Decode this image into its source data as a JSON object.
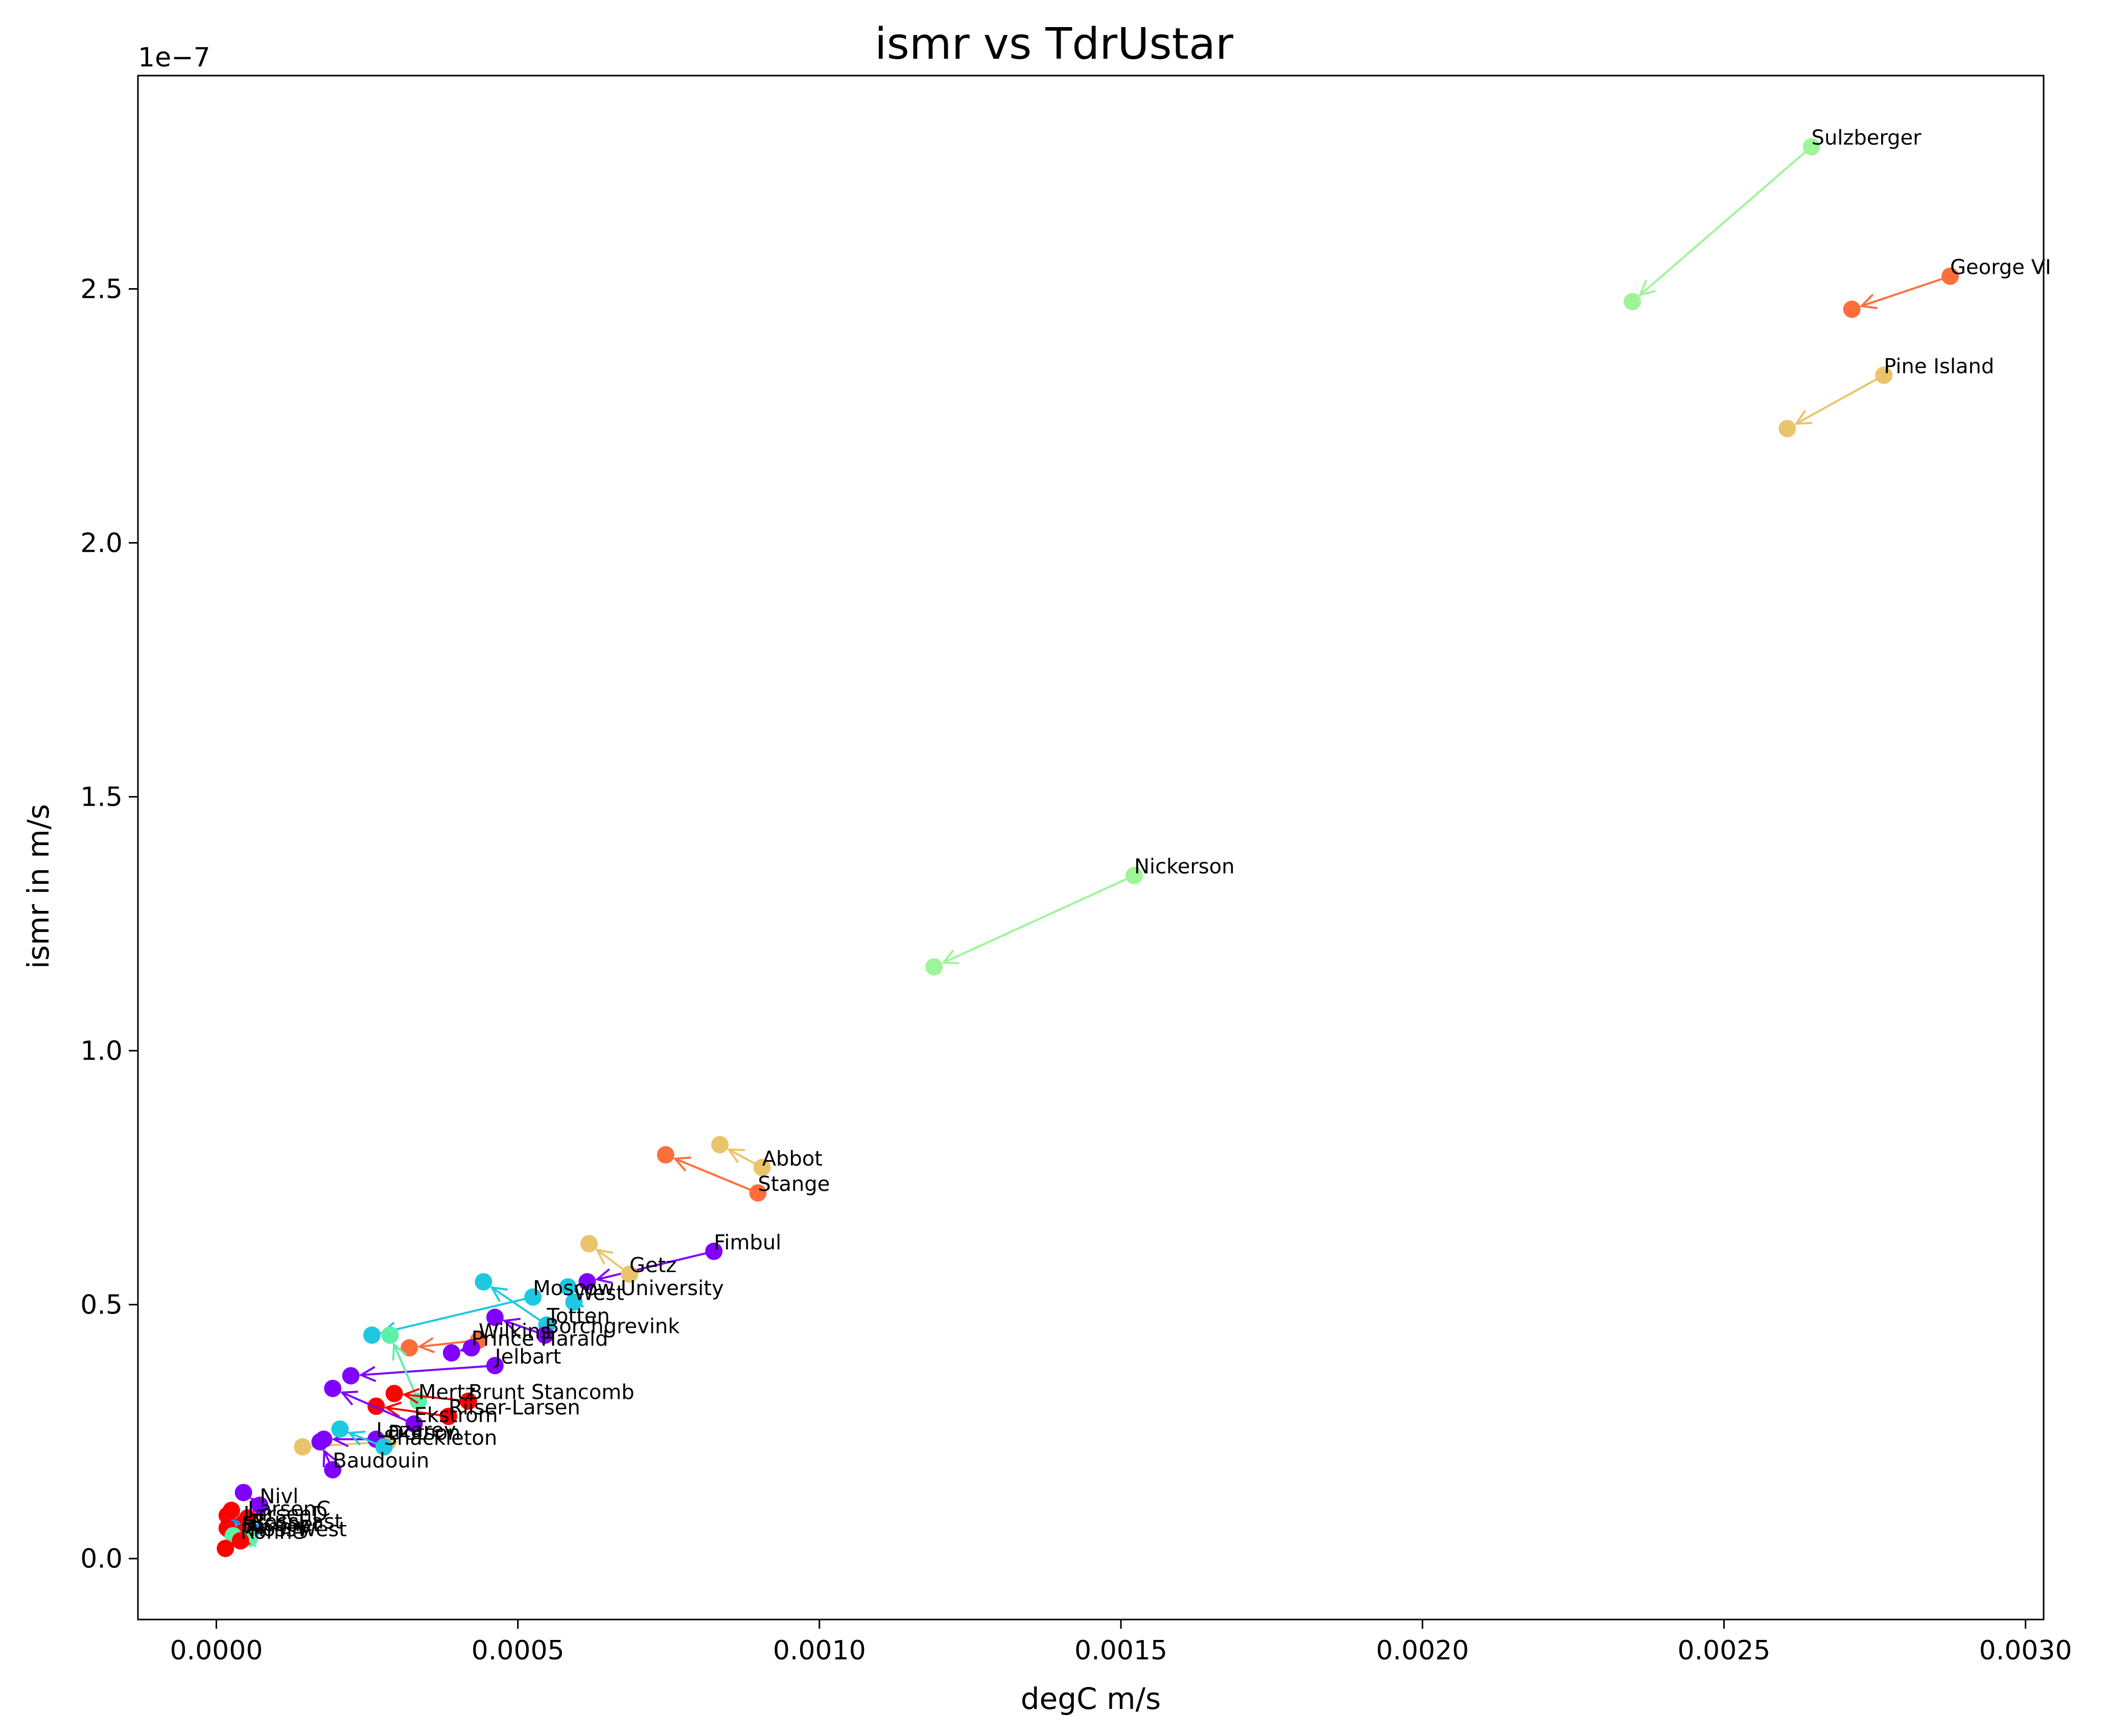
{
  "chart_data": {
    "type": "scatter",
    "title": "ismr vs TdrUstar",
    "xlabel": "degC m/s",
    "ylabel": "ismr in m/s",
    "y_offset_label": "1e−7",
    "xlim": [
      -0.00013,
      0.00303
    ],
    "ylim": [
      -0.12,
      2.92
    ],
    "y_scale_note": "y values in units of 1e-7 m/s",
    "xticks": [
      0.0,
      0.0005,
      0.001,
      0.0015,
      0.002,
      0.0025,
      0.003
    ],
    "xtick_labels": [
      "0.0000",
      "0.0005",
      "0.0010",
      "0.0015",
      "0.0020",
      "0.0025",
      "0.0030"
    ],
    "yticks": [
      0.0,
      0.5,
      1.0,
      1.5,
      2.0,
      2.5
    ],
    "ytick_labels": [
      "0.0",
      "0.5",
      "1.0",
      "1.5",
      "2.0",
      "2.5"
    ],
    "grid": false,
    "legend": "none",
    "annotation": "arrows point from labeled point to its paired point",
    "series": [
      {
        "name": "Sulzberger",
        "color": "#9df597",
        "x": 0.002645,
        "y": 2.78,
        "x2": 0.002348,
        "y2": 2.475
      },
      {
        "name": "George VI",
        "color": "#ff6e3a",
        "x": 0.002875,
        "y": 2.525,
        "x2": 0.002712,
        "y2": 2.46
      },
      {
        "name": "Pine Island",
        "color": "#e9c46a",
        "x": 0.002765,
        "y": 2.33,
        "x2": 0.002605,
        "y2": 2.225
      },
      {
        "name": "Nickerson",
        "color": "#9df597",
        "x": 0.001522,
        "y": 1.345,
        "x2": 0.00119,
        "y2": 1.165
      },
      {
        "name": "Abbot",
        "color": "#e9c46a",
        "x": 0.000905,
        "y": 0.77,
        "x2": 0.000835,
        "y2": 0.815
      },
      {
        "name": "Stange",
        "color": "#ff6e3a",
        "x": 0.000898,
        "y": 0.72,
        "x2": 0.000745,
        "y2": 0.795
      },
      {
        "name": "Fimbul",
        "color": "#7f00ff",
        "x": 0.000825,
        "y": 0.605,
        "x2": 0.000615,
        "y2": 0.545
      },
      {
        "name": "Getz",
        "color": "#e9c46a",
        "x": 0.000685,
        "y": 0.56,
        "x2": 0.000618,
        "y2": 0.62
      },
      {
        "name": "Moscow University",
        "color": "#1ec8e0",
        "x": 0.000525,
        "y": 0.515,
        "x2": 0.000258,
        "y2": 0.44
      },
      {
        "name": "West",
        "color": "#1ec8e0",
        "x": 0.000593,
        "y": 0.505,
        "x2": 0.000583,
        "y2": 0.535
      },
      {
        "name": "Totten",
        "color": "#1ec8e0",
        "x": 0.000548,
        "y": 0.46,
        "x2": 0.000443,
        "y2": 0.545
      },
      {
        "name": "Borchgrevink",
        "color": "#7f00ff",
        "x": 0.000545,
        "y": 0.44,
        "x2": 0.000462,
        "y2": 0.475
      },
      {
        "name": "Wilkins",
        "color": "#ff6e3a",
        "x": 0.000435,
        "y": 0.43,
        "x2": 0.00032,
        "y2": 0.415
      },
      {
        "name": "Prince Harald",
        "color": "#7f00ff",
        "x": 0.000423,
        "y": 0.415,
        "x2": 0.00039,
        "y2": 0.405
      },
      {
        "name": "Jelbart",
        "color": "#7f00ff",
        "x": 0.000462,
        "y": 0.38,
        "x2": 0.000223,
        "y2": 0.36
      },
      {
        "name": "Mertz",
        "color": "#5cf0a8",
        "x": 0.000335,
        "y": 0.31,
        "x2": 0.000288,
        "y2": 0.44
      },
      {
        "name": "Brunt Stancomb",
        "color": "#ff0000",
        "x": 0.000418,
        "y": 0.31,
        "x2": 0.000295,
        "y2": 0.325
      },
      {
        "name": "Riiser-Larsen",
        "color": "#ff0000",
        "x": 0.000385,
        "y": 0.28,
        "x2": 0.000265,
        "y2": 0.3
      },
      {
        "name": "Ekstrom",
        "color": "#7f00ff",
        "x": 0.000328,
        "y": 0.265,
        "x2": 0.000193,
        "y2": 0.335
      },
      {
        "name": "Dotson",
        "color": "#e9c46a",
        "x": 0.000285,
        "y": 0.23,
        "x2": 0.000143,
        "y2": 0.22
      },
      {
        "name": "Lazarev",
        "color": "#7f00ff",
        "x": 0.000265,
        "y": 0.235,
        "x2": 0.000178,
        "y2": 0.235
      },
      {
        "name": "Shackleton",
        "color": "#1ec8e0",
        "x": 0.000278,
        "y": 0.22,
        "x2": 0.000205,
        "y2": 0.255
      },
      {
        "name": "Baudouin",
        "color": "#7f00ff",
        "x": 0.000193,
        "y": 0.175,
        "x2": 0.000172,
        "y2": 0.23
      },
      {
        "name": "Nivl",
        "color": "#7f00ff",
        "x": 7.2e-05,
        "y": 0.105,
        "x2": 4.5e-05,
        "y2": 0.13
      },
      {
        "name": "LarsenC",
        "color": "#ff0000",
        "x": 5.2e-05,
        "y": 0.08,
        "x2": 2.5e-05,
        "y2": 0.095
      },
      {
        "name": "LarsenD",
        "color": "#ff0000",
        "x": 4.5e-05,
        "y": 0.07,
        "x2": 1.8e-05,
        "y2": 0.085
      },
      {
        "name": "RossEast",
        "color": "#1e90ff",
        "x": 5.8e-05,
        "y": 0.055,
        "x2": 2.8e-05,
        "y2": 0.06
      },
      {
        "name": "Amery",
        "color": "#5cf0a8",
        "x": 4.8e-05,
        "y": 0.045,
        "x2": 2.2e-05,
        "y2": 0.055
      },
      {
        "name": "Filchner",
        "color": "#ff0000",
        "x": 4.2e-05,
        "y": 0.05,
        "x2": 1.8e-05,
        "y2": 0.06
      },
      {
        "name": "RossWest",
        "color": "#5cf0a8",
        "x": 5.5e-05,
        "y": 0.04,
        "x2": 2.8e-05,
        "y2": 0.045
      },
      {
        "name": "Ronne",
        "color": "#ff0000",
        "x": 4e-05,
        "y": 0.035,
        "x2": 1.5e-05,
        "y2": 0.02
      }
    ]
  }
}
